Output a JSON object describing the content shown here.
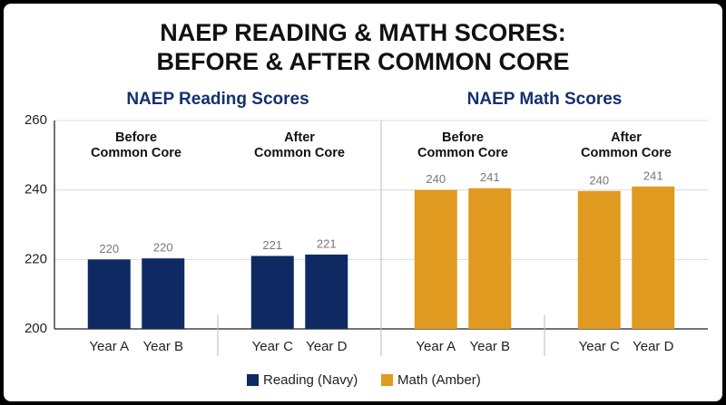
{
  "chart_data": {
    "type": "bar",
    "title": [
      "NAEP READING & MATH SCORES:",
      "BEFORE & AFTER COMMON CORE"
    ],
    "ylim": [
      200,
      260
    ],
    "yticks": [
      200,
      220,
      240,
      260
    ],
    "grid": true,
    "categories": [
      "Year A",
      "Year B",
      "Year C",
      "Year D"
    ],
    "group_labels": [
      [
        "Before",
        "Common Core"
      ],
      [
        "After",
        "Common Core"
      ]
    ],
    "panels": [
      {
        "title": "NAEP Reading Scores",
        "series": {
          "name": "Reading (Navy)",
          "color": "#0f2a63",
          "values": [
            220,
            220.3,
            221,
            221.4
          ],
          "value_labels": [
            "220",
            "220",
            "221",
            "221"
          ]
        }
      },
      {
        "title": "NAEP Math Scores",
        "series": {
          "name": "Math (Amber)",
          "color": "#df9a1f",
          "values": [
            240,
            240.5,
            239.7,
            241
          ],
          "value_labels": [
            "240",
            "241",
            "240",
            "241"
          ]
        }
      }
    ]
  }
}
